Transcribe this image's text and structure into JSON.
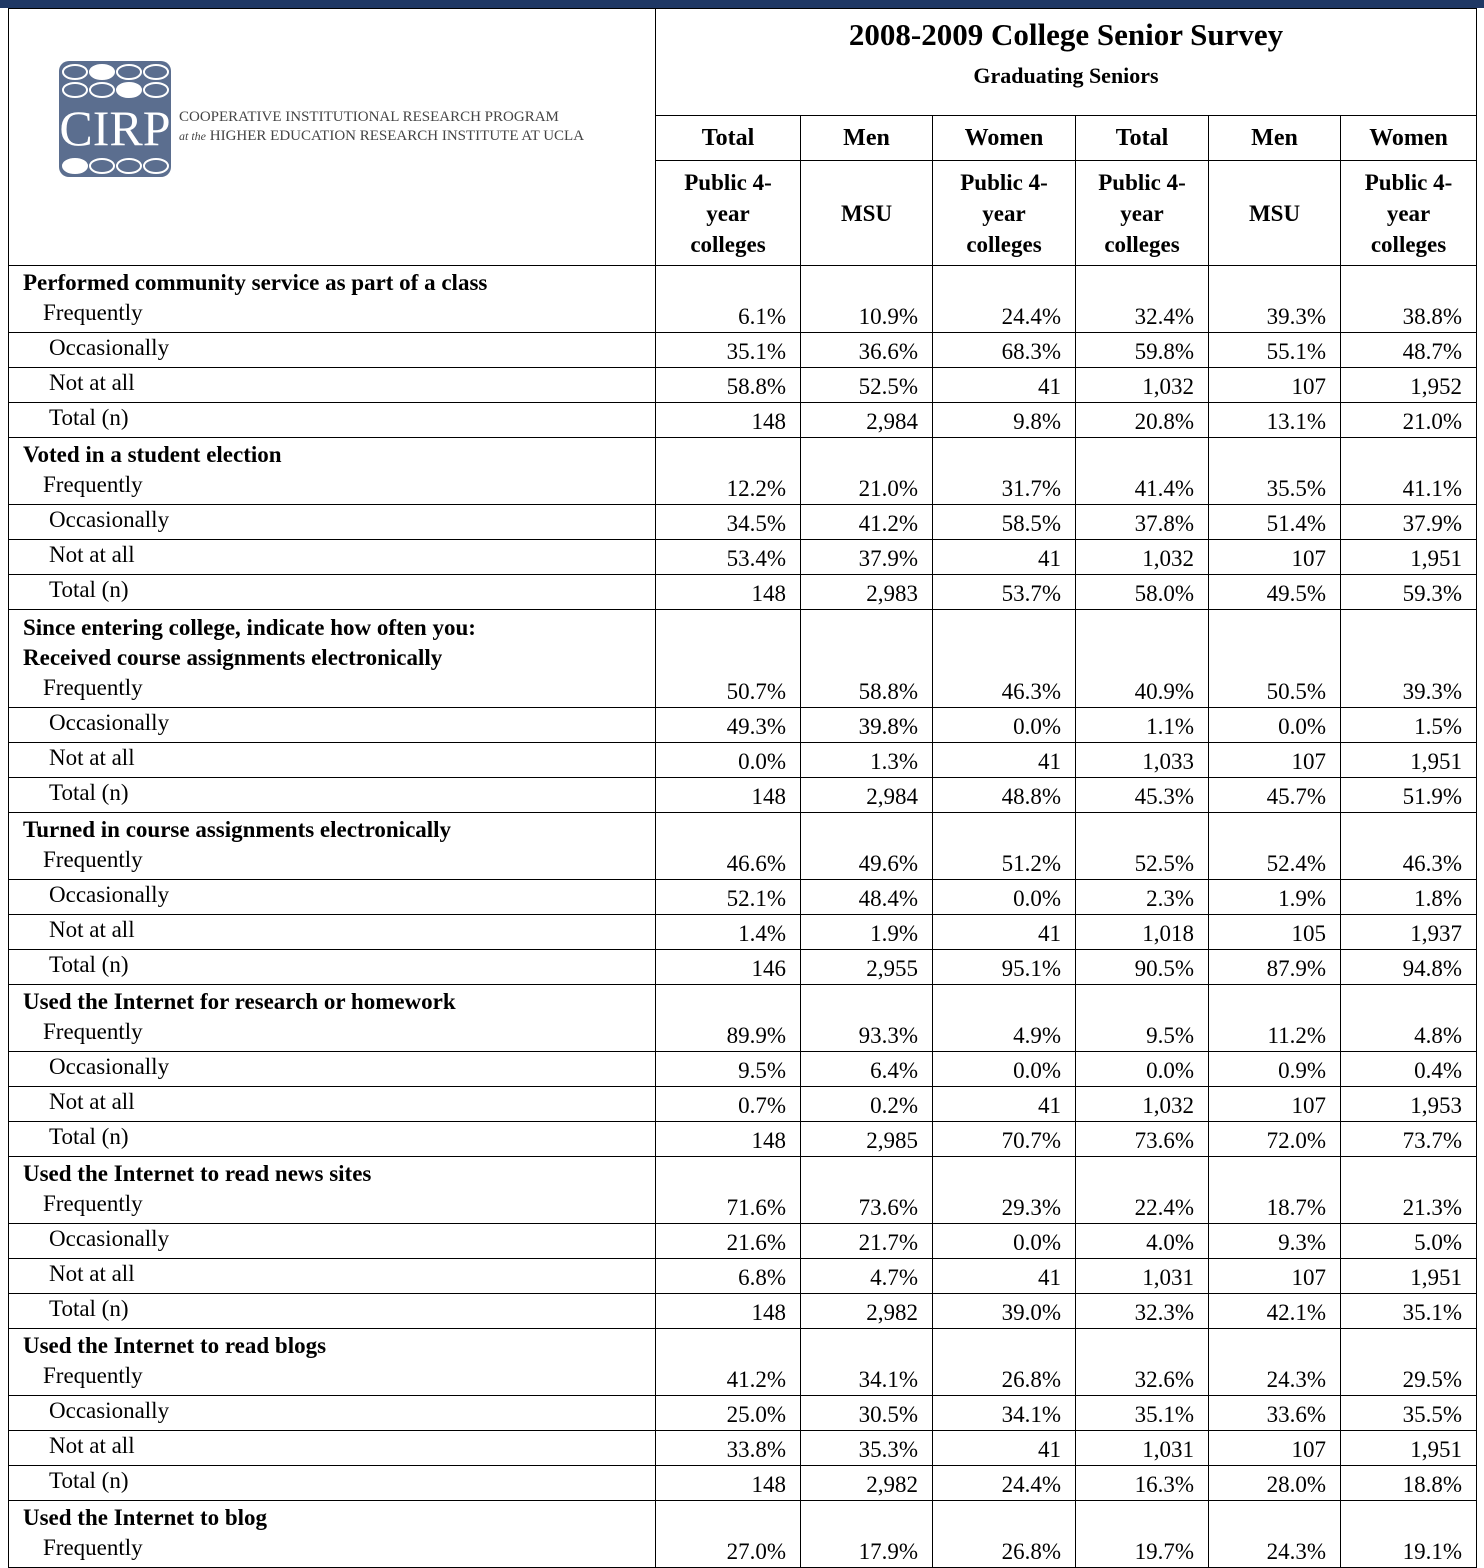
{
  "logo": {
    "mark": "CIRP",
    "line1": "COOPERATIVE INSTITUTIONAL RESEARCH PROGRAM",
    "line2_prefix": "at the",
    "line2": "HIGHER EDUCATION RESEARCH INSTITUTE AT UCLA"
  },
  "header": {
    "title": "2008-2009 College Senior Survey",
    "subtitle": "Graduating Seniors",
    "columns": [
      "Total",
      "Men",
      "Women",
      "Total",
      "Men",
      "Women"
    ],
    "subcolumns": [
      "Public 4-year colleges",
      "MSU",
      "Public 4-year colleges",
      "Public 4-year colleges",
      "MSU",
      "Public 4-year colleges"
    ]
  },
  "sections": [
    {
      "headings": [
        "Performed community service as part of a class"
      ],
      "rows": [
        {
          "label": "Frequently",
          "values": [
            "6.1%",
            "10.9%",
            "24.4%",
            "32.4%",
            "39.3%",
            "38.8%"
          ]
        },
        {
          "label": "Occasionally",
          "values": [
            "35.1%",
            "36.6%",
            "68.3%",
            "59.8%",
            "55.1%",
            "48.7%"
          ]
        },
        {
          "label": "Not at all",
          "values": [
            "58.8%",
            "52.5%",
            "41",
            "1,032",
            "107",
            "1,952"
          ]
        },
        {
          "label": "Total (n)",
          "values": [
            "148",
            "2,984",
            "9.8%",
            "20.8%",
            "13.1%",
            "21.0%"
          ]
        }
      ]
    },
    {
      "headings": [
        "Voted in a student election"
      ],
      "rows": [
        {
          "label": "Frequently",
          "values": [
            "12.2%",
            "21.0%",
            "31.7%",
            "41.4%",
            "35.5%",
            "41.1%"
          ]
        },
        {
          "label": "Occasionally",
          "values": [
            "34.5%",
            "41.2%",
            "58.5%",
            "37.8%",
            "51.4%",
            "37.9%"
          ]
        },
        {
          "label": "Not at all",
          "values": [
            "53.4%",
            "37.9%",
            "41",
            "1,032",
            "107",
            "1,951"
          ]
        },
        {
          "label": "Total (n)",
          "values": [
            "148",
            "2,983",
            "53.7%",
            "58.0%",
            "49.5%",
            "59.3%"
          ]
        }
      ]
    },
    {
      "headings": [
        "Since entering college, indicate how often you:",
        "Received course assignments electronically"
      ],
      "rows": [
        {
          "label": "Frequently",
          "values": [
            "50.7%",
            "58.8%",
            "46.3%",
            "40.9%",
            "50.5%",
            "39.3%"
          ]
        },
        {
          "label": "Occasionally",
          "values": [
            "49.3%",
            "39.8%",
            "0.0%",
            "1.1%",
            "0.0%",
            "1.5%"
          ]
        },
        {
          "label": "Not at all",
          "values": [
            "0.0%",
            "1.3%",
            "41",
            "1,033",
            "107",
            "1,951"
          ]
        },
        {
          "label": "Total (n)",
          "values": [
            "148",
            "2,984",
            "48.8%",
            "45.3%",
            "45.7%",
            "51.9%"
          ]
        }
      ]
    },
    {
      "headings": [
        "Turned in course assignments electronically"
      ],
      "rows": [
        {
          "label": "Frequently",
          "values": [
            "46.6%",
            "49.6%",
            "51.2%",
            "52.5%",
            "52.4%",
            "46.3%"
          ]
        },
        {
          "label": "Occasionally",
          "values": [
            "52.1%",
            "48.4%",
            "0.0%",
            "2.3%",
            "1.9%",
            "1.8%"
          ]
        },
        {
          "label": "Not at all",
          "values": [
            "1.4%",
            "1.9%",
            "41",
            "1,018",
            "105",
            "1,937"
          ]
        },
        {
          "label": "Total (n)",
          "values": [
            "146",
            "2,955",
            "95.1%",
            "90.5%",
            "87.9%",
            "94.8%"
          ]
        }
      ]
    },
    {
      "headings": [
        "Used the Internet for research or homework"
      ],
      "rows": [
        {
          "label": "Frequently",
          "values": [
            "89.9%",
            "93.3%",
            "4.9%",
            "9.5%",
            "11.2%",
            "4.8%"
          ]
        },
        {
          "label": "Occasionally",
          "values": [
            "9.5%",
            "6.4%",
            "0.0%",
            "0.0%",
            "0.9%",
            "0.4%"
          ]
        },
        {
          "label": "Not at all",
          "values": [
            "0.7%",
            "0.2%",
            "41",
            "1,032",
            "107",
            "1,953"
          ]
        },
        {
          "label": "Total (n)",
          "values": [
            "148",
            "2,985",
            "70.7%",
            "73.6%",
            "72.0%",
            "73.7%"
          ]
        }
      ]
    },
    {
      "headings": [
        "Used the Internet to read news sites"
      ],
      "rows": [
        {
          "label": "Frequently",
          "values": [
            "71.6%",
            "73.6%",
            "29.3%",
            "22.4%",
            "18.7%",
            "21.3%"
          ]
        },
        {
          "label": "Occasionally",
          "values": [
            "21.6%",
            "21.7%",
            "0.0%",
            "4.0%",
            "9.3%",
            "5.0%"
          ]
        },
        {
          "label": "Not at all",
          "values": [
            "6.8%",
            "4.7%",
            "41",
            "1,031",
            "107",
            "1,951"
          ]
        },
        {
          "label": "Total (n)",
          "values": [
            "148",
            "2,982",
            "39.0%",
            "32.3%",
            "42.1%",
            "35.1%"
          ]
        }
      ]
    },
    {
      "headings": [
        "Used the Internet to read blogs"
      ],
      "rows": [
        {
          "label": "Frequently",
          "values": [
            "41.2%",
            "34.1%",
            "26.8%",
            "32.6%",
            "24.3%",
            "29.5%"
          ]
        },
        {
          "label": "Occasionally",
          "values": [
            "25.0%",
            "30.5%",
            "34.1%",
            "35.1%",
            "33.6%",
            "35.5%"
          ]
        },
        {
          "label": "Not at all",
          "values": [
            "33.8%",
            "35.3%",
            "41",
            "1,031",
            "107",
            "1,951"
          ]
        },
        {
          "label": "Total (n)",
          "values": [
            "148",
            "2,982",
            "24.4%",
            "16.3%",
            "28.0%",
            "18.8%"
          ]
        }
      ]
    },
    {
      "headings": [
        "Used the Internet to blog"
      ],
      "rows": [
        {
          "label": "Frequently",
          "values": [
            "27.0%",
            "17.9%",
            "26.8%",
            "19.7%",
            "24.3%",
            "19.1%"
          ]
        }
      ]
    }
  ]
}
